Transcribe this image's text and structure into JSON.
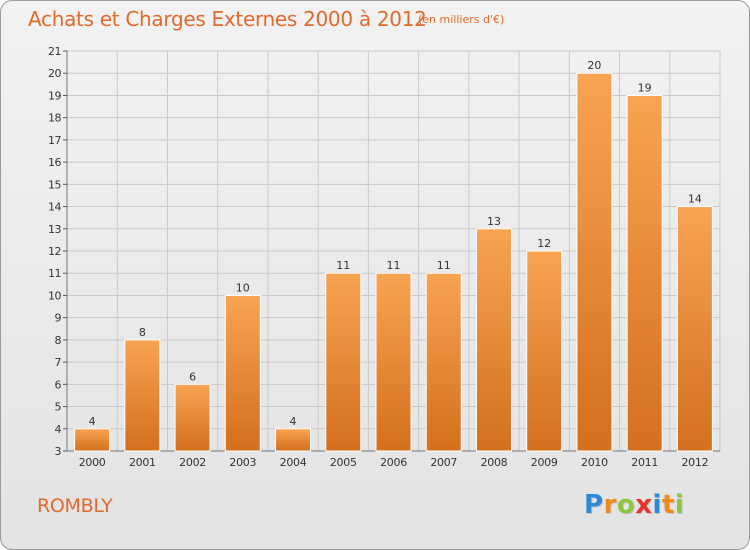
{
  "header": {
    "title": "Achats et Charges Externes 2000 à 2012",
    "unit": "(en milliers d'€)"
  },
  "footer": {
    "commune": "ROMBLY",
    "logo_text": "Proxiti",
    "logo_letters": [
      {
        "ch": "P",
        "color": "#2b8ad8"
      },
      {
        "ch": "r",
        "color": "#f08a1c"
      },
      {
        "ch": "o",
        "color": "#8dc63f"
      },
      {
        "ch": "x",
        "color": "#e8322c"
      },
      {
        "ch": "i",
        "color": "#2b8ad8"
      },
      {
        "ch": "t",
        "color": "#f08a1c"
      },
      {
        "ch": "i",
        "color": "#8dc63f"
      }
    ]
  },
  "colors": {
    "bar_top": "#f8a452",
    "bar_bottom": "#d46f1d",
    "title": "#e06a2a",
    "grid": "#c9c9c9"
  },
  "chart_data": {
    "type": "bar",
    "categories": [
      "2000",
      "2001",
      "2002",
      "2003",
      "2004",
      "2005",
      "2006",
      "2007",
      "2008",
      "2009",
      "2010",
      "2011",
      "2012"
    ],
    "values": [
      4,
      8,
      6,
      10,
      4,
      11,
      11,
      11,
      13,
      12,
      20,
      19,
      14
    ],
    "ylim": [
      3,
      21
    ],
    "yticks": [
      3,
      4,
      5,
      6,
      7,
      8,
      9,
      10,
      11,
      12,
      13,
      14,
      15,
      16,
      17,
      18,
      19,
      20,
      21
    ],
    "grid": true,
    "data_labels": true
  }
}
